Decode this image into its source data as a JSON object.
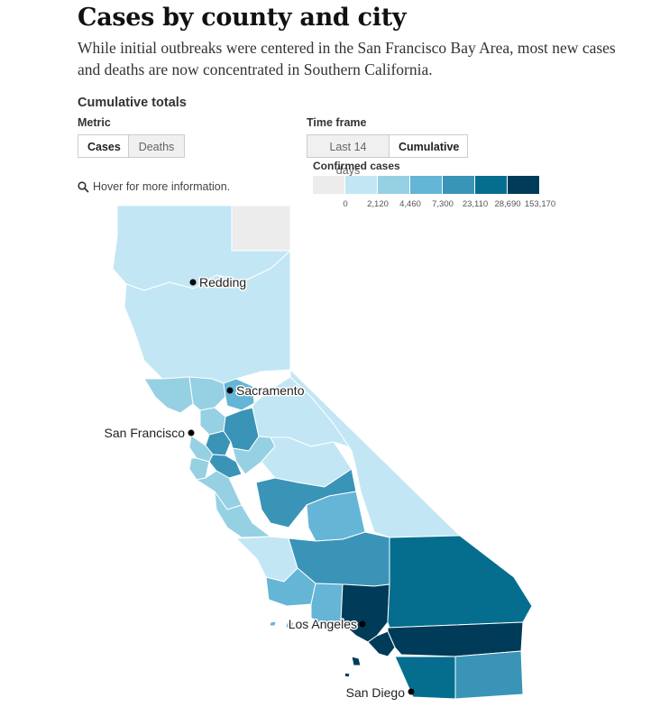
{
  "title": "Cases by county and city",
  "subtitle": "While initial outbreaks were centered in the San Francisco Bay Area, most new cases and deaths are now concentrated in Southern California.",
  "section_title": "Cumulative totals",
  "metric": {
    "label": "Metric",
    "options": [
      "Cases",
      "Deaths"
    ],
    "selected": "Cases"
  },
  "time_frame": {
    "label": "Time frame",
    "options": [
      "Last 14 days",
      "Cumulative"
    ],
    "selected": "Cumulative"
  },
  "legend": {
    "title": "Confirmed cases",
    "ticks": [
      "0",
      "2,120",
      "4,460",
      "7,300",
      "23,110",
      "28,690",
      "153,170"
    ],
    "colors": [
      "#ececec",
      "#c2e6f4",
      "#96d0e3",
      "#64b5d6",
      "#3a94b8",
      "#056e8e",
      "#003b59"
    ]
  },
  "hover_note": "Hover for more information.",
  "icons": {
    "hover": "search-icon"
  },
  "cities": [
    {
      "name": "Redding"
    },
    {
      "name": "Sacramento"
    },
    {
      "name": "San Francisco"
    },
    {
      "name": "Los Angeles"
    },
    {
      "name": "San Diego"
    }
  ]
}
